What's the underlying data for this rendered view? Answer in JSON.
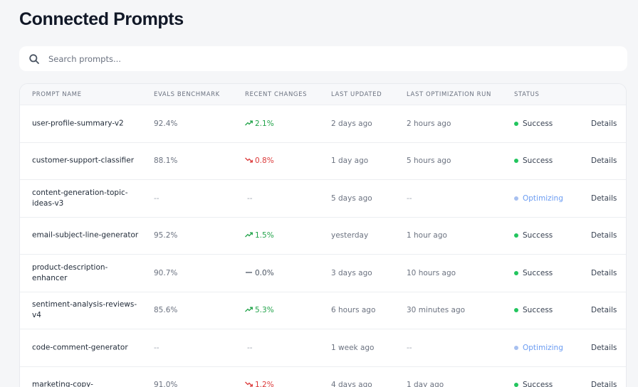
{
  "page": {
    "title": "Connected Prompts"
  },
  "search": {
    "placeholder": "Search prompts...",
    "value": "",
    "icon": "search-icon"
  },
  "table": {
    "columns": [
      "Prompt Name",
      "Evals Benchmark",
      "Recent Changes",
      "Last Updated",
      "Last Optimization Run",
      "Status",
      ""
    ],
    "rows": [
      {
        "name": "user-profile-summary-v2",
        "benchmark": "92.4%",
        "change": "2.1%",
        "change_dir": "up",
        "updated": "2 days ago",
        "last_opt": "2 hours ago",
        "status": "Success",
        "action": "Details"
      },
      {
        "name": "customer-support-classifier",
        "benchmark": "88.1%",
        "change": "0.8%",
        "change_dir": "down",
        "updated": "1 day ago",
        "last_opt": "5 hours ago",
        "status": "Success",
        "action": "Details"
      },
      {
        "name": "content-generation-topic-ideas-v3",
        "benchmark": "--",
        "change": "--",
        "change_dir": "none",
        "updated": "5 days ago",
        "last_opt": "--",
        "status": "Optimizing",
        "action": "Details"
      },
      {
        "name": "email-subject-line-generator",
        "benchmark": "95.2%",
        "change": "1.5%",
        "change_dir": "up",
        "updated": "yesterday",
        "last_opt": "1 hour ago",
        "status": "Success",
        "action": "Details"
      },
      {
        "name": "product-description-enhancer",
        "benchmark": "90.7%",
        "change": "0.0%",
        "change_dir": "flat",
        "updated": "3 days ago",
        "last_opt": "10 hours ago",
        "status": "Success",
        "action": "Details"
      },
      {
        "name": "sentiment-analysis-reviews-v4",
        "benchmark": "85.6%",
        "change": "5.3%",
        "change_dir": "up",
        "updated": "6 hours ago",
        "last_opt": "30 minutes ago",
        "status": "Success",
        "action": "Details"
      },
      {
        "name": "code-comment-generator",
        "benchmark": "--",
        "change": "--",
        "change_dir": "none",
        "updated": "1 week ago",
        "last_opt": "--",
        "status": "Optimizing",
        "action": "Details"
      },
      {
        "name": "marketing-copy-",
        "benchmark": "91.0%",
        "change": "1.2%",
        "change_dir": "down",
        "updated": "4 days ago",
        "last_opt": "1 day ago",
        "status": "Success",
        "action": "Details"
      }
    ]
  },
  "colors": {
    "background": "#f5f6f8",
    "up": "#22a34a",
    "down": "#dc3b3b",
    "success_dot": "#22c55e",
    "optimizing": "#6b9cf2"
  }
}
